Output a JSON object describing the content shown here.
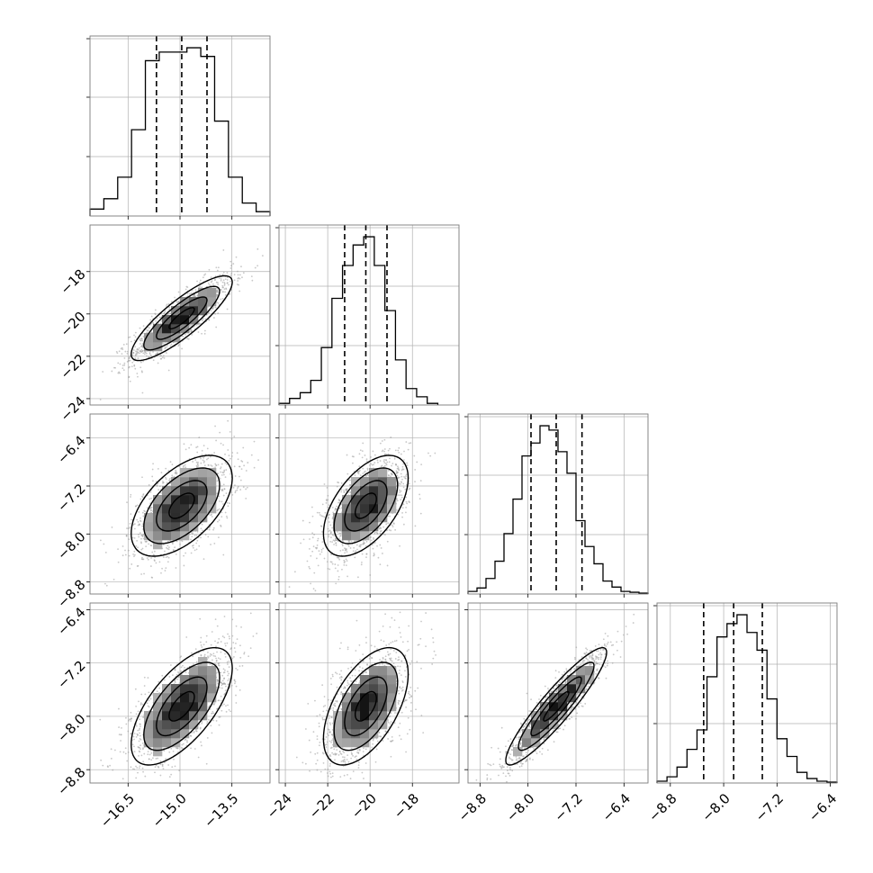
{
  "chart_data": {
    "type": "corner",
    "title": "",
    "grid": true,
    "parameters": [
      {
        "label": "",
        "range": [
          -17.6,
          -12.4
        ],
        "ticks": [
          -16.5,
          -15.0,
          -13.5
        ],
        "tick_labels": [
          "−16.5",
          "−15.0",
          "−13.5"
        ],
        "quantiles": [
          -15.68,
          -14.95,
          -14.22
        ],
        "mean": -14.95,
        "sd": 0.73,
        "hist_bins": [
          -17.6,
          -17.2,
          -16.8,
          -16.4,
          -16.0,
          -15.6,
          -15.2,
          -14.8,
          -14.4,
          -14.0,
          -13.6,
          -13.2,
          -12.8,
          -12.4
        ],
        "hist_counts": [
          8,
          20,
          45,
          100,
          180,
          190,
          190,
          195,
          185,
          110,
          45,
          15,
          5
        ]
      },
      {
        "label": "",
        "range": [
          -24.3,
          -15.8
        ],
        "ticks": [
          -24,
          -22,
          -20,
          -18
        ],
        "tick_labels": [
          "−24",
          "−22",
          "−20",
          "−18"
        ],
        "quantiles": [
          -21.2,
          -20.2,
          -19.2
        ],
        "mean": -20.2,
        "sd": 1.0,
        "hist_bins": [
          -24.3,
          -23.8,
          -23.3,
          -22.8,
          -22.3,
          -21.8,
          -21.3,
          -20.8,
          -20.3,
          -19.8,
          -19.3,
          -18.8,
          -18.3,
          -17.8,
          -17.3,
          -16.8
        ],
        "hist_counts": [
          2,
          8,
          15,
          30,
          70,
          130,
          170,
          195,
          205,
          170,
          115,
          55,
          20,
          10,
          2
        ]
      },
      {
        "label": "",
        "range": [
          -9.0,
          -6.0
        ],
        "ticks": [
          -8.8,
          -8.0,
          -7.2,
          -6.4
        ],
        "tick_labels": [
          "−8.8",
          "−8.0",
          "−7.2",
          "−6.4"
        ],
        "quantiles": [
          -7.95,
          -7.53,
          -7.1
        ],
        "mean": -7.53,
        "sd": 0.42,
        "hist_bins": [
          -9.0,
          -8.85,
          -8.7,
          -8.55,
          -8.4,
          -8.25,
          -8.1,
          -7.95,
          -7.8,
          -7.65,
          -7.5,
          -7.35,
          -7.2,
          -7.05,
          -6.9,
          -6.75,
          -6.6,
          -6.45,
          -6.3,
          -6.15,
          -6.0
        ],
        "hist_counts": [
          3,
          7,
          18,
          38,
          70,
          110,
          160,
          175,
          195,
          190,
          165,
          140,
          85,
          55,
          35,
          15,
          8,
          3,
          2,
          1
        ]
      },
      {
        "label": "",
        "range": [
          -9.0,
          -6.3
        ],
        "ticks": [
          -8.8,
          -8.0,
          -7.2,
          -6.4
        ],
        "tick_labels": [
          "−8.8",
          "−8.0",
          "−7.2",
          "−6.4"
        ],
        "quantiles": [
          -8.3,
          -7.85,
          -7.42
        ],
        "mean": -7.85,
        "sd": 0.44,
        "hist_bins": [
          -9.0,
          -8.85,
          -8.7,
          -8.55,
          -8.4,
          -8.25,
          -8.1,
          -7.95,
          -7.8,
          -7.65,
          -7.5,
          -7.35,
          -7.2,
          -7.05,
          -6.9,
          -6.75,
          -6.6,
          -6.45,
          -6.3
        ],
        "hist_counts": [
          2,
          7,
          18,
          38,
          60,
          120,
          165,
          180,
          190,
          170,
          150,
          95,
          50,
          30,
          12,
          5,
          2,
          1
        ]
      }
    ],
    "pairs": [
      {
        "x": 0,
        "y": 1,
        "correlation": 0.85
      },
      {
        "x": 0,
        "y": 2,
        "correlation": 0.55
      },
      {
        "x": 1,
        "y": 2,
        "correlation": 0.55
      },
      {
        "x": 0,
        "y": 3,
        "correlation": 0.65
      },
      {
        "x": 1,
        "y": 3,
        "correlation": 0.55
      },
      {
        "x": 2,
        "y": 3,
        "correlation": 0.92
      }
    ],
    "contour_levels_sigma": [
      0.5,
      1.0,
      1.5,
      2.0
    ],
    "colors": {
      "ink": "#000000",
      "scatter": "#9a9a9a",
      "grid": "#b0b0b0",
      "frame": "#7a7a7a"
    }
  }
}
